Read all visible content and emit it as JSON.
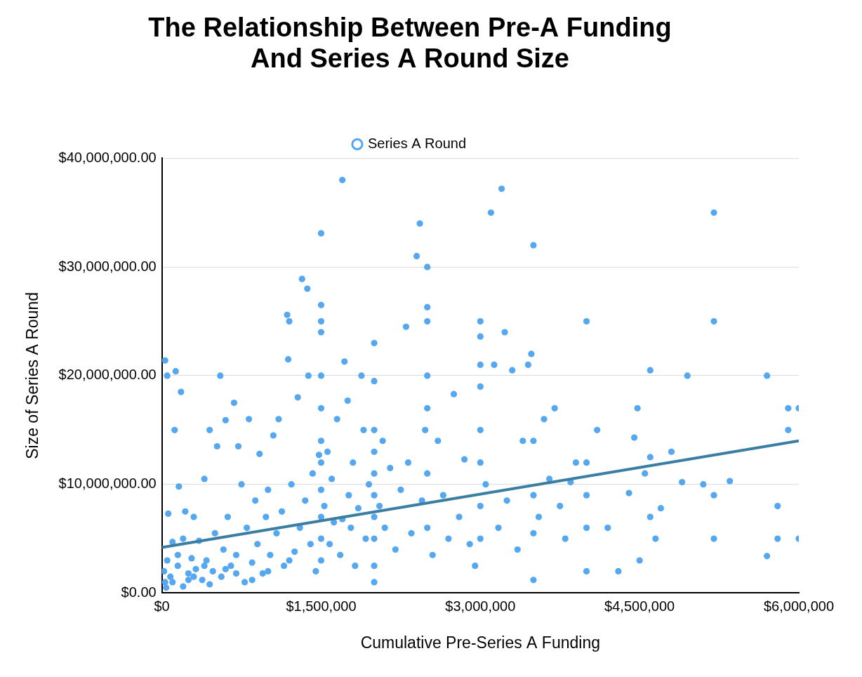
{
  "chart_data": {
    "type": "scatter",
    "title": [
      "The Relationship Between Pre-A Funding",
      "And Series A Round Size"
    ],
    "x_label": "Cumulative Pre-Series A Funding",
    "y_label": "Size of Series A Round",
    "legend": "top",
    "grid": "y",
    "xlim": [
      0,
      6000000
    ],
    "xticks": [
      {
        "value": 0,
        "label": "$0"
      },
      {
        "value": 1500000,
        "label": "$1,500,000"
      },
      {
        "value": 3000000,
        "label": "$3,000,000"
      },
      {
        "value": 4500000,
        "label": "$4,500,000"
      },
      {
        "value": 6000000,
        "label": "$6,000,000"
      }
    ],
    "ylim": [
      0,
      40000000
    ],
    "yticks": [
      {
        "value": 0,
        "label": "$0.00"
      },
      {
        "value": 10000000,
        "label": "$10,000,000.00"
      },
      {
        "value": 20000000,
        "label": "$20,000,000.00"
      },
      {
        "value": 30000000,
        "label": "$30,000,000.00"
      },
      {
        "value": 40000000,
        "label": "$40,000,000.00"
      }
    ],
    "series": [
      {
        "name": "Series A Round",
        "color": "#55a8ef",
        "marker": "circle",
        "x": [
          20000,
          30000,
          40000,
          50000,
          60000,
          30000,
          50000,
          80000,
          100000,
          120000,
          130000,
          150000,
          160000,
          180000,
          200000,
          200000,
          220000,
          250000,
          280000,
          300000,
          320000,
          350000,
          380000,
          400000,
          420000,
          450000,
          480000,
          500000,
          520000,
          550000,
          560000,
          580000,
          600000,
          620000,
          650000,
          680000,
          700000,
          720000,
          750000,
          780000,
          800000,
          820000,
          850000,
          880000,
          900000,
          920000,
          950000,
          980000,
          1000000,
          1020000,
          1050000,
          1080000,
          1100000,
          1130000,
          1150000,
          1180000,
          1190000,
          1200000,
          1220000,
          1250000,
          1280000,
          1300000,
          1320000,
          1350000,
          1370000,
          1380000,
          1400000,
          1420000,
          1450000,
          1480000,
          1500000,
          1500000,
          1500000,
          1500000,
          1500000,
          1500000,
          1500000,
          1500000,
          1500000,
          1500000,
          1500000,
          1500000,
          1530000,
          1560000,
          1580000,
          1600000,
          1620000,
          1650000,
          1680000,
          1700000,
          1720000,
          1750000,
          1760000,
          1780000,
          1800000,
          1820000,
          1850000,
          1880000,
          1900000,
          1920000,
          1950000,
          2000000,
          2000000,
          2000000,
          2000000,
          2000000,
          2000000,
          2000000,
          2000000,
          2000000,
          2000000,
          2050000,
          2080000,
          2100000,
          2150000,
          2200000,
          2250000,
          2300000,
          2320000,
          2350000,
          2400000,
          2430000,
          2450000,
          2480000,
          2500000,
          2500000,
          2500000,
          2500000,
          2500000,
          2500000,
          2500000,
          2550000,
          2600000,
          2650000,
          2700000,
          2750000,
          2800000,
          2850000,
          2900000,
          2950000,
          3000000,
          3000000,
          3000000,
          3000000,
          3000000,
          3000000,
          3000000,
          3000000,
          3050000,
          3100000,
          3130000,
          3170000,
          3200000,
          3230000,
          3250000,
          3300000,
          3350000,
          3400000,
          3450000,
          3480000,
          3500000,
          3500000,
          3500000,
          3500000,
          3500000,
          3550000,
          3600000,
          3650000,
          3700000,
          3750000,
          3800000,
          3850000,
          3900000,
          4000000,
          4000000,
          4000000,
          4000000,
          4000000,
          4100000,
          4200000,
          4300000,
          4400000,
          4450000,
          4480000,
          4500000,
          4550000,
          4600000,
          4600000,
          4600000,
          4650000,
          4700000,
          4800000,
          4900000,
          4950000,
          5100000,
          5200000,
          5200000,
          5200000,
          5200000,
          5350000,
          5700000,
          5700000,
          5800000,
          5800000,
          5900000,
          5900000,
          6000000,
          6000000,
          250000,
          400000,
          100000,
          150000,
          300000,
          450000,
          600000,
          700000,
          850000,
          1000000,
          1200000,
          1700000
        ],
        "values": [
          2000000,
          1000000,
          500000,
          3000000,
          7300000,
          21400000,
          20000000,
          1500000,
          4700000,
          15000000,
          20400000,
          2500000,
          9800000,
          18500000,
          600000,
          5000000,
          7500000,
          1800000,
          3200000,
          7000000,
          2200000,
          4800000,
          1200000,
          10500000,
          3000000,
          15000000,
          2000000,
          5500000,
          13500000,
          20000000,
          1500000,
          4000000,
          15900000,
          7000000,
          2500000,
          17500000,
          3500000,
          13500000,
          10000000,
          1000000,
          6000000,
          16000000,
          2800000,
          8500000,
          4500000,
          12800000,
          1800000,
          7000000,
          9500000,
          3500000,
          14500000,
          5500000,
          16000000,
          7500000,
          2500000,
          25600000,
          21500000,
          25000000,
          10000000,
          3800000,
          18000000,
          6000000,
          28900000,
          8500000,
          28000000,
          20000000,
          4500000,
          11000000,
          2000000,
          12700000,
          33100000,
          26500000,
          25000000,
          24000000,
          20000000,
          17000000,
          14000000,
          12000000,
          9500000,
          7000000,
          5000000,
          3000000,
          8000000,
          13000000,
          4500000,
          10500000,
          6500000,
          16000000,
          3500000,
          38000000,
          21300000,
          17700000,
          9000000,
          6000000,
          12000000,
          2500000,
          7800000,
          20000000,
          15000000,
          5000000,
          10000000,
          23000000,
          19500000,
          15000000,
          13000000,
          11000000,
          9000000,
          7000000,
          5000000,
          2500000,
          1000000,
          8000000,
          14000000,
          6000000,
          11500000,
          4000000,
          9500000,
          24500000,
          12000000,
          5500000,
          31000000,
          34000000,
          8500000,
          15000000,
          30000000,
          26300000,
          25000000,
          20000000,
          17000000,
          11000000,
          6000000,
          3500000,
          14000000,
          9000000,
          5000000,
          18300000,
          7000000,
          12300000,
          4500000,
          2500000,
          25000000,
          23600000,
          21000000,
          19000000,
          15000000,
          12000000,
          8000000,
          5000000,
          10000000,
          35000000,
          21000000,
          6000000,
          37200000,
          24000000,
          8500000,
          20500000,
          4000000,
          14000000,
          21000000,
          22000000,
          32000000,
          14000000,
          9000000,
          5500000,
          1200000,
          7000000,
          16000000,
          10500000,
          17000000,
          8000000,
          5000000,
          10200000,
          12000000,
          25000000,
          12000000,
          9000000,
          6000000,
          2000000,
          15000000,
          6000000,
          2000000,
          9200000,
          14300000,
          17000000,
          3000000,
          11000000,
          20500000,
          12500000,
          7000000,
          5000000,
          7800000,
          13000000,
          10200000,
          20000000,
          10000000,
          35000000,
          25000000,
          9000000,
          5000000,
          10300000,
          20000000,
          3400000,
          8000000,
          5000000,
          17000000,
          15000000,
          17000000,
          5000000,
          1200000,
          2500000,
          1000000,
          3500000,
          1500000,
          800000,
          2200000,
          1800000,
          1200000,
          2000000,
          3000000,
          6800000
        ]
      },
      {
        "type": "line",
        "color": "#3a7ea4",
        "line_style": "solid",
        "x": [
          0,
          6000000
        ],
        "values": [
          4200000,
          14000000
        ]
      }
    ]
  }
}
